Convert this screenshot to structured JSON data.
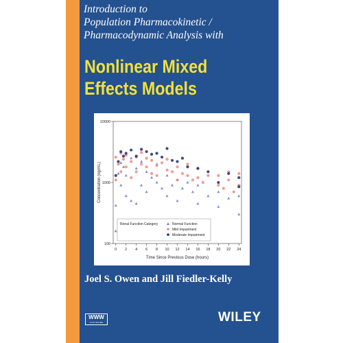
{
  "book": {
    "subtitle_lines": [
      "Introduction to",
      "Population Pharmacokinetic /",
      "Pharmacodynamic Analysis with"
    ],
    "title_lines": [
      "Nonlinear Mixed",
      "Effects Models"
    ],
    "authors": "Joel S. Owen and Jill Fiedler-Kelly",
    "badge": {
      "main": "WWW",
      "sub": "LINK INSIDE"
    },
    "publisher": "WILEY"
  },
  "colors": {
    "cover_blue": "#24518f",
    "spine_orange": "#f39a3c",
    "title_yellow": "#f3e13a",
    "normal": "#6b7fc4",
    "mild": "#f28a7e",
    "moderate": "#1f2a6b"
  },
  "chart_data": {
    "type": "scatter",
    "xlabel": "Time Since Previous Dose (hours)",
    "ylabel": "Concentration (ng/mL)",
    "x_ticks": [
      0,
      2,
      4,
      6,
      8,
      10,
      12,
      14,
      16,
      18,
      20,
      22,
      24
    ],
    "y_ticks": [
      100,
      1000,
      10000
    ],
    "ylim": [
      100,
      10000
    ],
    "xlim": [
      -0.5,
      24.5
    ],
    "y_scale": "log",
    "legend": {
      "title": "Renal Function Category",
      "placement": "bottom-left",
      "entries": [
        "Normal Function",
        "Mild Impairment",
        "Moderate Impairment"
      ]
    },
    "series": [
      {
        "name": "Normal Function",
        "marker": "triangle",
        "points": [
          [
            0,
            160
          ],
          [
            0,
            420
          ],
          [
            0.5,
            1400
          ],
          [
            1,
            900
          ],
          [
            1,
            2100
          ],
          [
            1.5,
            1800
          ],
          [
            2,
            600
          ],
          [
            2,
            1300
          ],
          [
            3,
            2500
          ],
          [
            3,
            500
          ],
          [
            4,
            1700
          ],
          [
            4,
            450
          ],
          [
            5,
            2200
          ],
          [
            5,
            900
          ],
          [
            6,
            1500
          ],
          [
            6,
            700
          ],
          [
            7,
            1200
          ],
          [
            8,
            1000
          ],
          [
            8,
            2000
          ],
          [
            9,
            800
          ],
          [
            10,
            1300
          ],
          [
            10,
            600
          ],
          [
            11,
            900
          ],
          [
            12,
            1100
          ],
          [
            12,
            500
          ],
          [
            13,
            800
          ],
          [
            14,
            1000
          ],
          [
            15,
            700
          ],
          [
            16,
            900
          ],
          [
            16,
            450
          ],
          [
            18,
            600
          ],
          [
            20,
            700
          ],
          [
            20,
            400
          ],
          [
            22,
            550
          ],
          [
            24,
            300
          ],
          [
            24,
            600
          ]
        ]
      },
      {
        "name": "Mild Impairment",
        "marker": "circle",
        "points": [
          [
            0,
            1100
          ],
          [
            0,
            2600
          ],
          [
            0.5,
            2000
          ],
          [
            1,
            1500
          ],
          [
            1,
            3000
          ],
          [
            1.5,
            2400
          ],
          [
            2,
            1800
          ],
          [
            2,
            2800
          ],
          [
            3,
            2200
          ],
          [
            3,
            1200
          ],
          [
            4,
            2600
          ],
          [
            4,
            1500
          ],
          [
            5,
            2000
          ],
          [
            5,
            3100
          ],
          [
            6,
            1800
          ],
          [
            6,
            2500
          ],
          [
            7,
            1400
          ],
          [
            7,
            2300
          ],
          [
            8,
            1900
          ],
          [
            8,
            1300
          ],
          [
            9,
            2100
          ],
          [
            10,
            1600
          ],
          [
            10,
            2400
          ],
          [
            11,
            1500
          ],
          [
            12,
            1800
          ],
          [
            12,
            1100
          ],
          [
            13,
            1400
          ],
          [
            14,
            1300
          ],
          [
            14,
            2000
          ],
          [
            15,
            1100
          ],
          [
            16,
            1200
          ],
          [
            16,
            1700
          ],
          [
            17,
            1000
          ],
          [
            18,
            1300
          ],
          [
            20,
            900
          ],
          [
            20,
            1300
          ],
          [
            21,
            800
          ],
          [
            22,
            1100
          ],
          [
            22,
            1500
          ],
          [
            23,
            700
          ],
          [
            24,
            900
          ],
          [
            24,
            1400
          ]
        ]
      },
      {
        "name": "Moderate Impairment",
        "marker": "circle",
        "points": [
          [
            0,
            1300
          ],
          [
            0.5,
            2200
          ],
          [
            1,
            3200
          ],
          [
            1.5,
            2700
          ],
          [
            2,
            3000
          ],
          [
            3,
            3400
          ],
          [
            4,
            2700
          ],
          [
            5,
            3500
          ],
          [
            6,
            3200
          ],
          [
            7,
            2900
          ],
          [
            8,
            3000
          ],
          [
            9,
            2600
          ],
          [
            10,
            3600
          ],
          [
            11,
            2300
          ],
          [
            12,
            2200
          ],
          [
            13,
            2500
          ],
          [
            14,
            1800
          ],
          [
            16,
            1700
          ],
          [
            18,
            1500
          ],
          [
            20,
            1000
          ],
          [
            22,
            1400
          ],
          [
            24,
            850
          ],
          [
            24,
            1200
          ]
        ]
      }
    ]
  }
}
